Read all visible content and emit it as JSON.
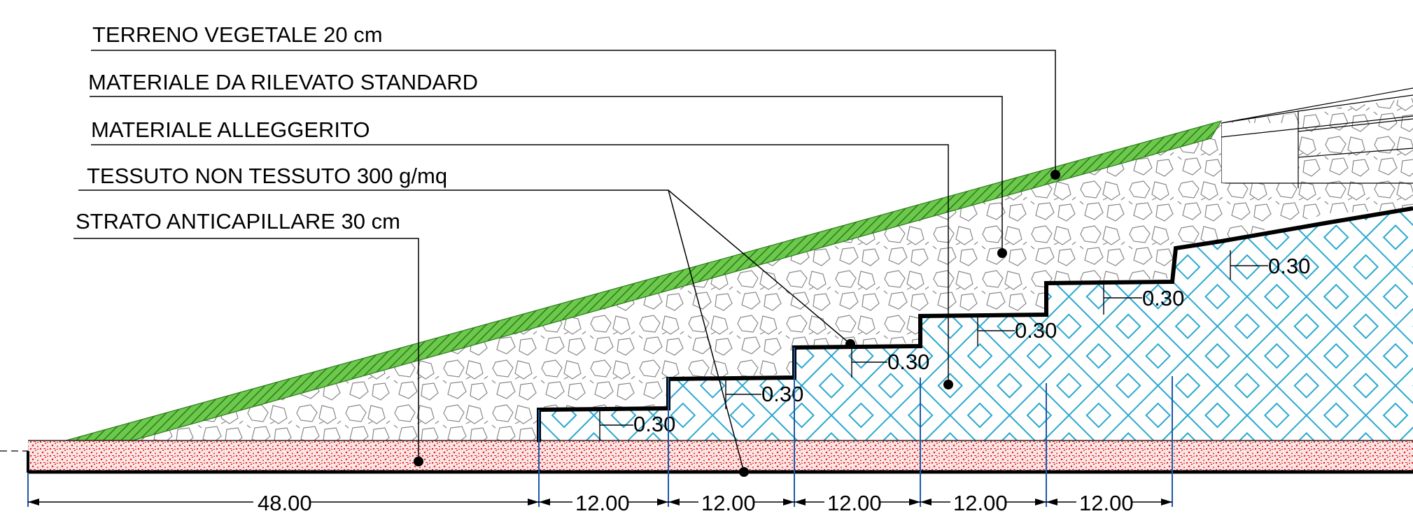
{
  "labels": {
    "terreno": "TERRENO VEGETALE 20 cm",
    "rilevato": "MATERIALE DA RILEVATO STANDARD",
    "alleggerito": "MATERIALE ALLEGGERITO",
    "tessuto": "TESSUTO NON TESSUTO 300 g/mq",
    "anticapillare": "STRATO ANTICAPILLARE 30 cm"
  },
  "steps": [
    "0.30",
    "0.30",
    "0.30",
    "0.30",
    "0.30",
    "0.30"
  ],
  "dimensions": [
    "48.00",
    "12.00",
    "12.00",
    "12.00",
    "12.00",
    "12.00"
  ],
  "colors": {
    "topsoil": "#52b535",
    "anticapillary": "#e02020",
    "lightweight": "#2aa8d0",
    "dimension": "#1a5aa8"
  }
}
